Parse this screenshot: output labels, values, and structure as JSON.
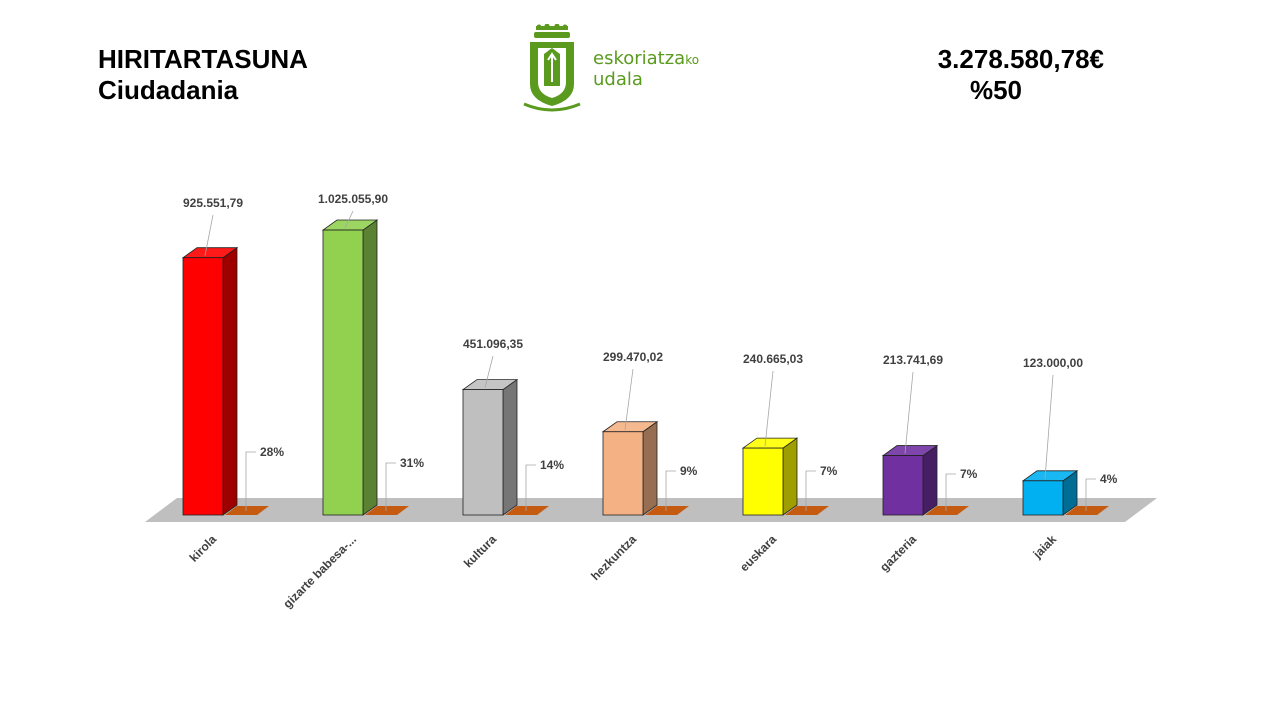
{
  "header": {
    "title_line1": "HIRITARTASUNA",
    "title_line2": "Ciudadania",
    "total_amount": "3.278.580,78€",
    "total_percent": "%50"
  },
  "logo": {
    "name_main": "eskoriatza",
    "name_suffix": "ko",
    "name_line2": "udala",
    "icon": "eskoriatza-coat-of-arms-icon",
    "color": "#5a9a1e"
  },
  "chart_data": {
    "type": "bar",
    "categories": [
      "kirola",
      "gizarte babesa-...",
      "kultura",
      "hezkuntza",
      "euskara",
      "gazteria",
      "jaiak"
    ],
    "series": [
      {
        "values": [
          925551.79,
          1025055.9,
          451096.35,
          299470.02,
          240665.03,
          213741.69,
          123000.0
        ],
        "value_labels": [
          "925.551,79",
          "1.025.055,90",
          "451.096,35",
          "299.470,02",
          "240.665,03",
          "213.741,69",
          "123.000,00"
        ],
        "colors": [
          "#ff0000",
          "#92d050",
          "#bfbfbf",
          "#f4b183",
          "#ffff00",
          "#7030a0",
          "#00b0f0"
        ]
      },
      {
        "values": [
          28,
          31,
          14,
          9,
          7,
          7,
          4
        ],
        "value_labels": [
          "28%",
          "31%",
          "14%",
          "9%",
          "7%",
          "7%",
          "4%"
        ],
        "color": "#c55a11"
      }
    ],
    "title": "",
    "xlabel": "",
    "ylabel": "",
    "floor_color": "#bfbfbf",
    "grid": false,
    "legend": "none"
  }
}
